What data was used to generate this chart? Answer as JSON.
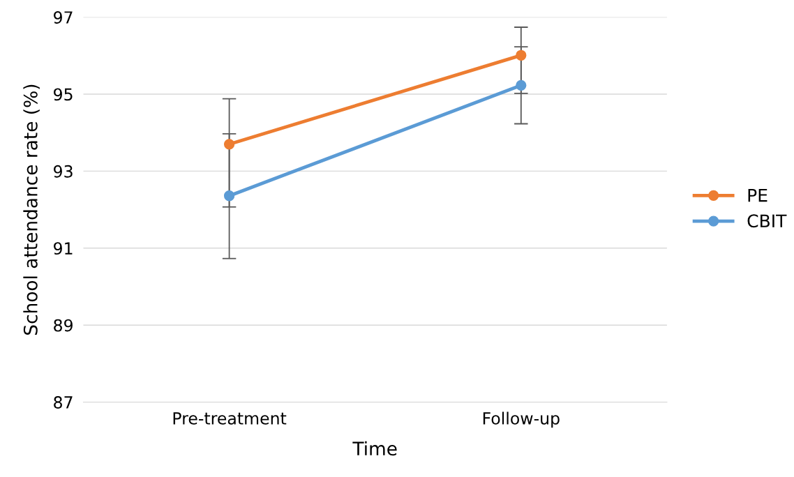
{
  "chart_data": {
    "type": "line",
    "xlabel": "Time",
    "ylabel": "School attendance rate (%)",
    "categories": [
      "Pre-treatment",
      "Follow-up"
    ],
    "series": [
      {
        "name": "PE",
        "color": "#ed7d31",
        "values": [
          93.7,
          96.01
        ],
        "errors": [
          [
            92.07,
            94.88
          ],
          [
            95.02,
            96.74
          ]
        ]
      },
      {
        "name": "CBIT",
        "color": "#5b9bd5",
        "values": [
          92.36,
          95.23
        ],
        "errors": [
          [
            90.73,
            93.97
          ],
          [
            94.23,
            96.23
          ]
        ]
      }
    ],
    "ylim": [
      87,
      97
    ],
    "yticks": [
      87,
      89,
      91,
      93,
      95,
      97
    ],
    "grid": "y",
    "legend": "right",
    "marker": "circle",
    "line_style": "solid"
  }
}
